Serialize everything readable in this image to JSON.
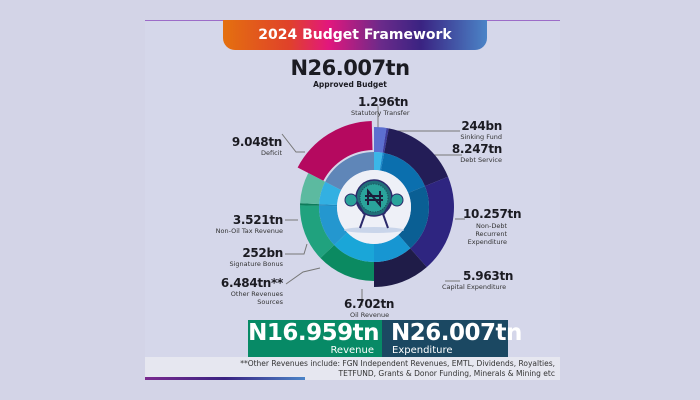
{
  "title": "2024 Budget Framework",
  "approved": {
    "value": "N26.007tn",
    "label": "Approved Budget"
  },
  "labels": {
    "statutory": {
      "value": "1.296tn",
      "label": "Statutory Transfer"
    },
    "sinking": {
      "value": "244bn",
      "label": "Sinking Fund"
    },
    "debt": {
      "value": "8.247tn",
      "label": "Debt Service"
    },
    "nondebt": {
      "value": "10.257tn",
      "label1": "Non-Debt",
      "label2": "Recurrent",
      "label3": "Expenditure"
    },
    "capital": {
      "value": "5.963tn",
      "label": "Capital Expenditure"
    },
    "deficit": {
      "value": "9.048tn",
      "label": "Deficit"
    },
    "nonoil": {
      "value": "3.521tn",
      "label": "Non-Oil Tax Revenue"
    },
    "signature": {
      "value": "252bn",
      "label": "Signature Bonus"
    },
    "other": {
      "value": "6.484tn**",
      "label1": "Other Revenues",
      "label2": "Sources"
    },
    "oil": {
      "value": "6.702tn",
      "label": "Oil Revenue"
    }
  },
  "totals": {
    "revenue": {
      "value": "N16.959tn",
      "label": "Revenue"
    },
    "expenditure": {
      "value": "N26.007tn",
      "label": "Expenditure"
    }
  },
  "footnote": {
    "line1": "**Other Revenues include: FGN Independent Revenues, EMTL, Dividends, Royalties,",
    "line2": "TETFUND, Grants & Donor Funding, Minerals & Mining etc"
  },
  "center_icon": "naira-coin-mascot-icon",
  "chart_data": {
    "type": "pie",
    "unit": "tn",
    "series": [
      {
        "name": "Expenditure",
        "categories": [
          "Statutory Transfer",
          "Sinking Fund",
          "Debt Service",
          "Non-Debt Recurrent Expenditure",
          "Capital Expenditure"
        ],
        "values": [
          1.296,
          0.244,
          8.247,
          10.257,
          5.963
        ],
        "colors": [
          "#5c6fd0",
          "#3d3c9c",
          "#231d57",
          "#2e2580",
          "#1f1c48"
        ]
      },
      {
        "name": "Revenue",
        "categories": [
          "Oil Revenue",
          "Other Revenues Sources",
          "Signature Bonus",
          "Non-Oil Tax Revenue",
          "Deficit"
        ],
        "values": [
          6.702,
          6.484,
          0.252,
          3.521,
          9.048
        ],
        "colors": [
          "#0b8a61",
          "#20a27e",
          "#0d7c5a",
          "#5cbaa0",
          "#b5095f"
        ]
      }
    ]
  }
}
